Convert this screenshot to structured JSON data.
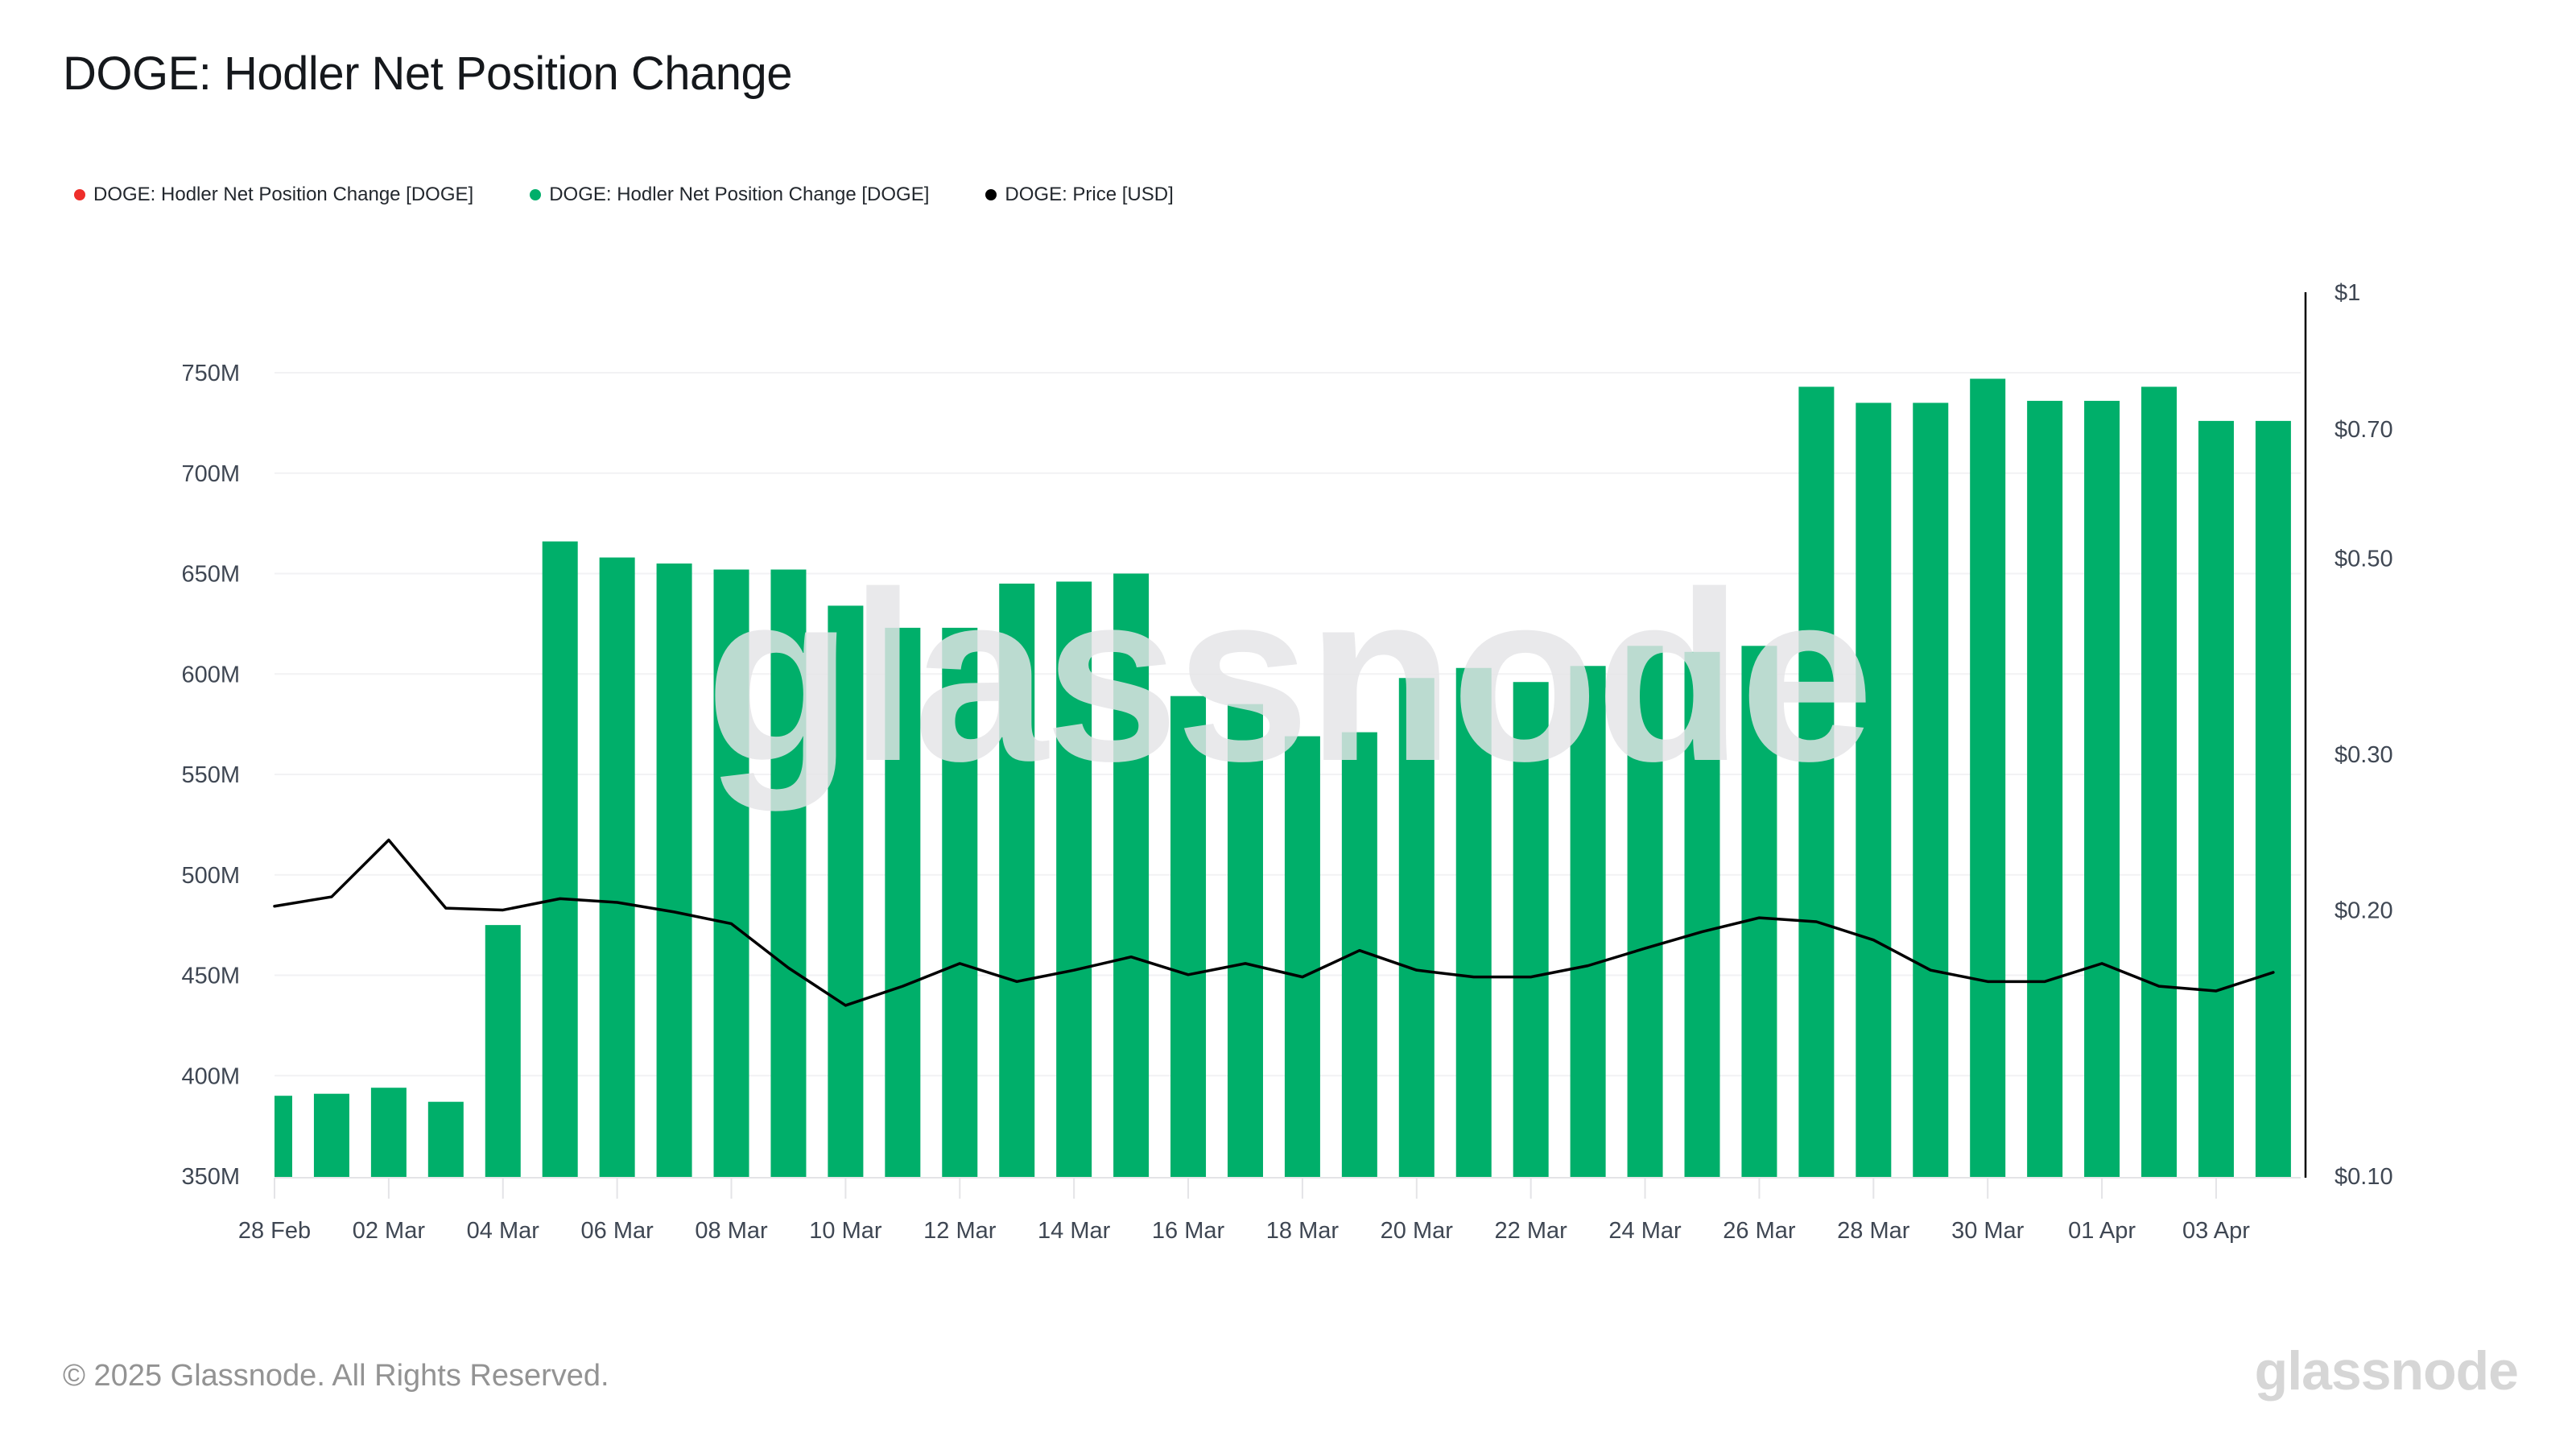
{
  "title": "DOGE: Hodler Net Position Change",
  "legend": [
    {
      "label": "DOGE: Hodler Net Position Change [DOGE]",
      "color": "#ee2e2a",
      "shape": "dot"
    },
    {
      "label": "DOGE: Hodler Net Position Change [DOGE]",
      "color": "#00af6a",
      "shape": "dot"
    },
    {
      "label": "DOGE: Price [USD]",
      "color": "#000000",
      "shape": "dot"
    }
  ],
  "chart_data": {
    "type": "bar",
    "title": "DOGE: Hodler Net Position Change",
    "categories": [
      "28 Feb",
      "01 Mar",
      "02 Mar",
      "03 Mar",
      "04 Mar",
      "05 Mar",
      "06 Mar",
      "07 Mar",
      "08 Mar",
      "09 Mar",
      "10 Mar",
      "11 Mar",
      "12 Mar",
      "13 Mar",
      "14 Mar",
      "15 Mar",
      "16 Mar",
      "17 Mar",
      "18 Mar",
      "19 Mar",
      "20 Mar",
      "21 Mar",
      "22 Mar",
      "23 Mar",
      "24 Mar",
      "25 Mar",
      "26 Mar",
      "27 Mar",
      "28 Mar",
      "29 Mar",
      "30 Mar",
      "31 Mar",
      "01 Apr",
      "02 Apr",
      "03 Apr",
      "04 Apr"
    ],
    "series": [
      {
        "name": "DOGE: Hodler Net Position Change [DOGE]",
        "type": "bar",
        "yaxis": "left",
        "color": "#00af6a",
        "unit": "DOGE",
        "values_millions": [
          390,
          391,
          394,
          387,
          475,
          666,
          658,
          655,
          652,
          652,
          634,
          623,
          623,
          645,
          646,
          650,
          589,
          585,
          569,
          571,
          598,
          603,
          596,
          604,
          614,
          611,
          614,
          743,
          735,
          735,
          747,
          736,
          736,
          743,
          726,
          726
        ]
      },
      {
        "name": "DOGE: Price [USD]",
        "type": "line",
        "yaxis": "right",
        "color": "#000000",
        "values_usd": [
          0.202,
          0.207,
          0.24,
          0.201,
          0.2,
          0.206,
          0.204,
          0.199,
          0.193,
          0.172,
          0.156,
          0.164,
          0.174,
          0.166,
          0.171,
          0.177,
          0.169,
          0.174,
          0.168,
          0.18,
          0.171,
          0.168,
          0.168,
          0.173,
          0.181,
          0.189,
          0.196,
          0.194,
          0.185,
          0.171,
          0.166,
          0.166,
          0.174,
          0.164,
          0.162,
          0.17
        ]
      }
    ],
    "left_axis": {
      "tick_labels": [
        "350M",
        "400M",
        "450M",
        "500M",
        "550M",
        "600M",
        "650M",
        "700M",
        "750M"
      ],
      "tick_values_millions": [
        350,
        400,
        450,
        500,
        550,
        600,
        650,
        700,
        750
      ],
      "min_millions": 350,
      "max_millions": 790
    },
    "right_axis": {
      "scale": "log",
      "tick_labels": [
        "$1",
        "$0.70",
        "$0.50",
        "$0.30",
        "$0.20",
        "$0.10"
      ],
      "tick_values_usd": [
        1,
        0.7,
        0.5,
        0.3,
        0.2,
        0.1
      ],
      "min_usd": 0.1,
      "max_usd": 1
    },
    "x_axis": {
      "tick_labels": [
        "28 Feb",
        "02 Mar",
        "04 Mar",
        "06 Mar",
        "08 Mar",
        "10 Mar",
        "12 Mar",
        "14 Mar",
        "16 Mar",
        "18 Mar",
        "20 Mar",
        "22 Mar",
        "24 Mar",
        "26 Mar",
        "28 Mar",
        "30 Mar",
        "01 Apr",
        "03 Apr"
      ],
      "tick_every": 2
    },
    "grid": "horizontal",
    "legend_position": "top-left"
  },
  "watermark": "glassnode",
  "footer": {
    "copyright": "© 2025 Glassnode. All Rights Reserved."
  },
  "brand_logo": "glassnode",
  "colors": {
    "bar_green": "#00af6a",
    "legend_red": "#ee2e2a",
    "price_black": "#000000",
    "grid_line": "#f2f2f4",
    "axis_bottom_line": "#e4e4e7",
    "axis_text": "#3f4753",
    "title_text": "#15181c",
    "footer_text": "#939393",
    "watermark_gray": "#e4e4e6",
    "logo_gray": "#d6d6d6",
    "right_spine": "#000000"
  }
}
